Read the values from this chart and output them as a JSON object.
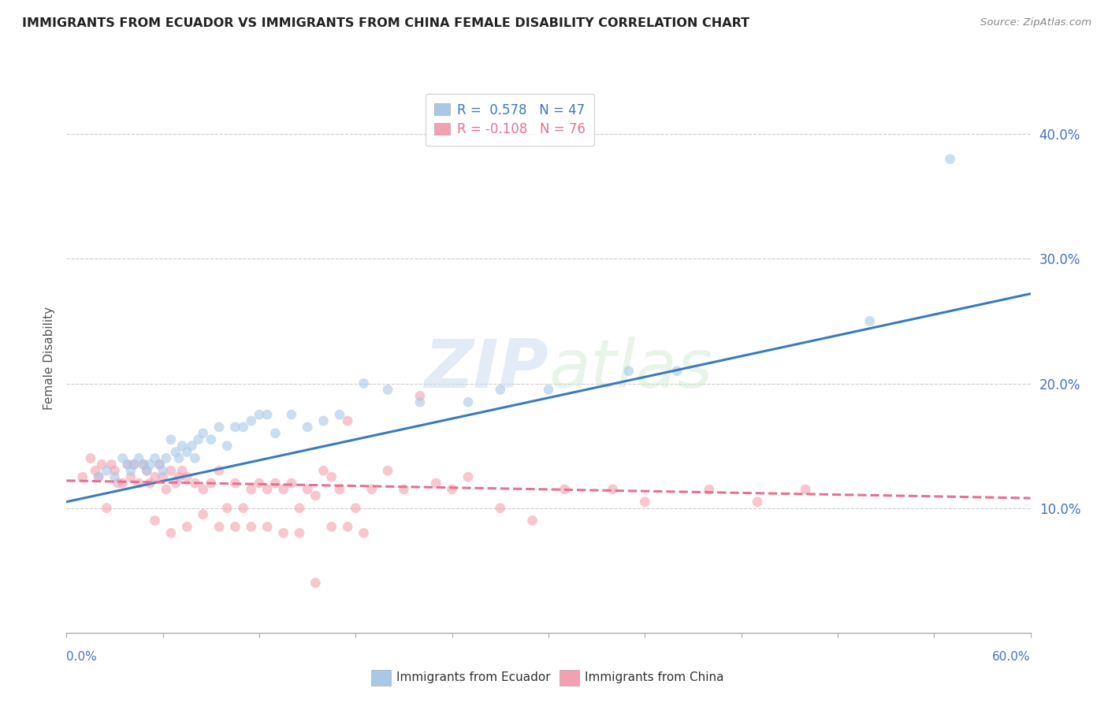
{
  "title": "IMMIGRANTS FROM ECUADOR VS IMMIGRANTS FROM CHINA FEMALE DISABILITY CORRELATION CHART",
  "source": "Source: ZipAtlas.com",
  "ylabel": "Female Disability",
  "legend_entries": [
    {
      "label": "R =  0.578   N = 47",
      "color": "#a8c8e8"
    },
    {
      "label": "R = -0.108   N = 76",
      "color": "#f4a0b0"
    }
  ],
  "legend_labels": [
    "Immigrants from Ecuador",
    "Immigrants from China"
  ],
  "ytick_vals": [
    0.1,
    0.2,
    0.3,
    0.4
  ],
  "ytick_labels": [
    "10.0%",
    "20.0%",
    "30.0%",
    "40.0%"
  ],
  "background_color": "#ffffff",
  "watermark": "ZIPatlas",
  "ecuador_color": "#a8c8e8",
  "china_color": "#f4a0b0",
  "ecuador_line_color": "#3a7abf",
  "china_line_color": "#e87090",
  "ecuador_scatter": {
    "x": [
      0.02,
      0.025,
      0.03,
      0.035,
      0.038,
      0.04,
      0.042,
      0.045,
      0.048,
      0.05,
      0.052,
      0.055,
      0.058,
      0.06,
      0.062,
      0.065,
      0.068,
      0.07,
      0.072,
      0.075,
      0.078,
      0.08,
      0.082,
      0.085,
      0.09,
      0.095,
      0.1,
      0.105,
      0.11,
      0.115,
      0.12,
      0.125,
      0.13,
      0.14,
      0.15,
      0.16,
      0.17,
      0.185,
      0.2,
      0.22,
      0.25,
      0.27,
      0.3,
      0.35,
      0.38,
      0.5,
      0.55
    ],
    "y": [
      0.125,
      0.13,
      0.125,
      0.14,
      0.135,
      0.13,
      0.135,
      0.14,
      0.135,
      0.13,
      0.135,
      0.14,
      0.135,
      0.13,
      0.14,
      0.155,
      0.145,
      0.14,
      0.15,
      0.145,
      0.15,
      0.14,
      0.155,
      0.16,
      0.155,
      0.165,
      0.15,
      0.165,
      0.165,
      0.17,
      0.175,
      0.175,
      0.16,
      0.175,
      0.165,
      0.17,
      0.175,
      0.2,
      0.195,
      0.185,
      0.185,
      0.195,
      0.195,
      0.21,
      0.21,
      0.25,
      0.38
    ]
  },
  "china_scatter": {
    "x": [
      0.01,
      0.015,
      0.018,
      0.02,
      0.022,
      0.025,
      0.028,
      0.03,
      0.032,
      0.035,
      0.038,
      0.04,
      0.042,
      0.045,
      0.048,
      0.05,
      0.052,
      0.055,
      0.058,
      0.06,
      0.062,
      0.065,
      0.068,
      0.07,
      0.072,
      0.075,
      0.08,
      0.085,
      0.09,
      0.095,
      0.1,
      0.105,
      0.11,
      0.115,
      0.12,
      0.125,
      0.13,
      0.135,
      0.14,
      0.145,
      0.15,
      0.155,
      0.16,
      0.165,
      0.17,
      0.175,
      0.18,
      0.19,
      0.2,
      0.21,
      0.22,
      0.23,
      0.24,
      0.25,
      0.27,
      0.29,
      0.31,
      0.34,
      0.36,
      0.4,
      0.43,
      0.46,
      0.055,
      0.065,
      0.075,
      0.085,
      0.095,
      0.105,
      0.115,
      0.125,
      0.135,
      0.145,
      0.155,
      0.165,
      0.175,
      0.185
    ],
    "y": [
      0.125,
      0.14,
      0.13,
      0.125,
      0.135,
      0.1,
      0.135,
      0.13,
      0.12,
      0.12,
      0.135,
      0.125,
      0.135,
      0.12,
      0.135,
      0.13,
      0.12,
      0.125,
      0.135,
      0.125,
      0.115,
      0.13,
      0.12,
      0.125,
      0.13,
      0.125,
      0.12,
      0.115,
      0.12,
      0.13,
      0.1,
      0.12,
      0.1,
      0.115,
      0.12,
      0.115,
      0.12,
      0.115,
      0.12,
      0.1,
      0.115,
      0.11,
      0.13,
      0.125,
      0.115,
      0.17,
      0.1,
      0.115,
      0.13,
      0.115,
      0.19,
      0.12,
      0.115,
      0.125,
      0.1,
      0.09,
      0.115,
      0.115,
      0.105,
      0.115,
      0.105,
      0.115,
      0.09,
      0.08,
      0.085,
      0.095,
      0.085,
      0.085,
      0.085,
      0.085,
      0.08,
      0.08,
      0.04,
      0.085,
      0.085,
      0.08
    ]
  },
  "ecuador_line": {
    "x0": 0.0,
    "x1": 0.6,
    "y0": 0.105,
    "y1": 0.272
  },
  "china_line": {
    "x0": 0.0,
    "x1": 0.6,
    "y0": 0.122,
    "y1": 0.108
  },
  "xlim": [
    0.0,
    0.6
  ],
  "ylim": [
    -0.02,
    0.44
  ],
  "plot_ylim": [
    0.0,
    0.44
  ]
}
